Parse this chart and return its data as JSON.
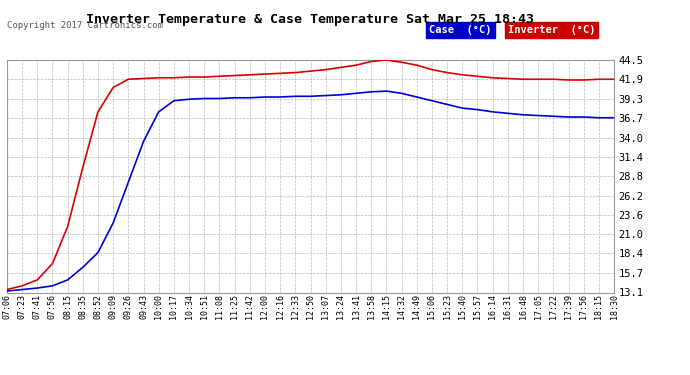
{
  "title": "Inverter Temperature & Case Temperature Sat Mar 25 18:43",
  "copyright": "Copyright 2017 Cartronics.com",
  "background_color": "#ffffff",
  "plot_bg_color": "#ffffff",
  "grid_color": "#bbbbbb",
  "y_ticks": [
    13.1,
    15.7,
    18.4,
    21.0,
    23.6,
    26.2,
    28.8,
    31.4,
    34.0,
    36.7,
    39.3,
    41.9,
    44.5
  ],
  "y_min": 13.1,
  "y_max": 44.5,
  "case_color": "#0000dd",
  "inverter_color": "#dd0000",
  "legend_case_bg": "#0000cc",
  "legend_inverter_bg": "#cc0000",
  "x_labels": [
    "07:06",
    "07:23",
    "07:41",
    "07:56",
    "08:15",
    "08:35",
    "08:52",
    "09:09",
    "09:26",
    "09:43",
    "10:00",
    "10:17",
    "10:34",
    "10:51",
    "11:08",
    "11:25",
    "11:42",
    "12:00",
    "12:16",
    "12:33",
    "12:50",
    "13:07",
    "13:24",
    "13:41",
    "13:58",
    "14:15",
    "14:32",
    "14:49",
    "15:06",
    "15:23",
    "15:40",
    "15:57",
    "16:14",
    "16:31",
    "16:48",
    "17:05",
    "17:22",
    "17:39",
    "17:56",
    "18:15",
    "18:30"
  ],
  "inverter_y": [
    13.5,
    14.0,
    14.8,
    17.0,
    22.0,
    30.0,
    37.5,
    40.8,
    41.9,
    42.0,
    42.1,
    42.1,
    42.2,
    42.2,
    42.3,
    42.4,
    42.5,
    42.6,
    42.7,
    42.8,
    43.0,
    43.2,
    43.5,
    43.8,
    44.3,
    44.5,
    44.2,
    43.8,
    43.2,
    42.8,
    42.5,
    42.3,
    42.1,
    42.0,
    41.9,
    41.9,
    41.9,
    41.8,
    41.8,
    41.9,
    41.9
  ],
  "case_y": [
    13.3,
    13.5,
    13.7,
    14.0,
    14.8,
    16.5,
    18.5,
    22.5,
    28.0,
    33.5,
    37.5,
    39.0,
    39.2,
    39.3,
    39.3,
    39.4,
    39.4,
    39.5,
    39.5,
    39.6,
    39.6,
    39.7,
    39.8,
    40.0,
    40.2,
    40.3,
    40.0,
    39.5,
    39.0,
    38.5,
    38.0,
    37.8,
    37.5,
    37.3,
    37.1,
    37.0,
    36.9,
    36.8,
    36.8,
    36.7,
    36.7
  ]
}
